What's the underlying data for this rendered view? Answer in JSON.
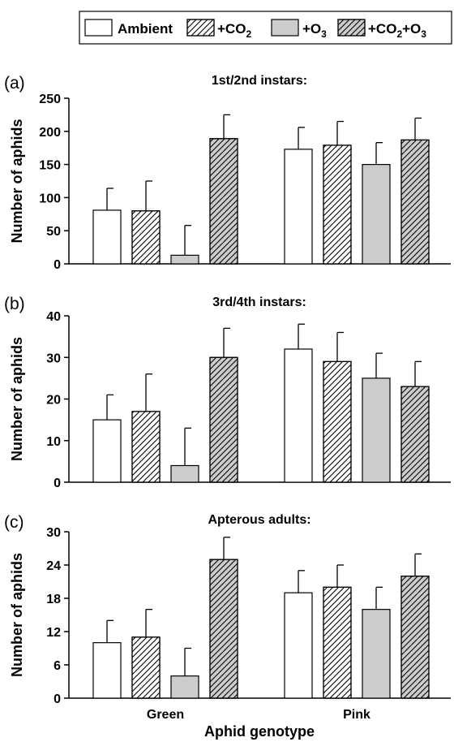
{
  "legend": [
    {
      "key": "ambient",
      "label": "Ambient",
      "sub": "",
      "suffix": ""
    },
    {
      "key": "co2",
      "label": "+CO",
      "sub": "2",
      "suffix": ""
    },
    {
      "key": "o3",
      "label": "+O",
      "sub": "3",
      "suffix": ""
    },
    {
      "key": "co2o3",
      "label": "+CO",
      "sub": "2",
      "suffix": "+O",
      "sub2": "3"
    }
  ],
  "fills": {
    "ambient": {
      "color": "#ffffff",
      "hatch": false
    },
    "co2": {
      "color": "#ffffff",
      "hatch": true
    },
    "o3": {
      "color": "#cccccc",
      "hatch": false
    },
    "co2o3": {
      "color": "#cccccc",
      "hatch": true
    }
  },
  "xlabel": "Aphid genotype",
  "chart_data": [
    {
      "type": "bar",
      "panel": "(a)",
      "title": "1st/2nd instars:",
      "ylabel": "Number of aphids",
      "categories": [
        "Green",
        "Pink"
      ],
      "ylim": [
        0,
        250
      ],
      "yticks": [
        0,
        50,
        100,
        150,
        200,
        250
      ],
      "series": [
        {
          "key": "ambient",
          "values": [
            81,
            173
          ],
          "errors": [
            33,
            33
          ]
        },
        {
          "key": "co2",
          "values": [
            80,
            179
          ],
          "errors": [
            45,
            36
          ]
        },
        {
          "key": "o3",
          "values": [
            13,
            150
          ],
          "errors": [
            45,
            33
          ]
        },
        {
          "key": "co2o3",
          "values": [
            189,
            187
          ],
          "errors": [
            36,
            33
          ]
        }
      ]
    },
    {
      "type": "bar",
      "panel": "(b)",
      "title": "3rd/4th instars:",
      "ylabel": "Number of aphids",
      "categories": [
        "Green",
        "Pink"
      ],
      "ylim": [
        0,
        40
      ],
      "yticks": [
        0,
        10,
        20,
        30,
        40
      ],
      "series": [
        {
          "key": "ambient",
          "values": [
            15,
            32
          ],
          "errors": [
            6,
            6
          ]
        },
        {
          "key": "co2",
          "values": [
            17,
            29
          ],
          "errors": [
            9,
            7
          ]
        },
        {
          "key": "o3",
          "values": [
            4,
            25
          ],
          "errors": [
            9,
            6
          ]
        },
        {
          "key": "co2o3",
          "values": [
            30,
            23
          ],
          "errors": [
            7,
            6
          ]
        }
      ]
    },
    {
      "type": "bar",
      "panel": "(c)",
      "title": "Apterous adults:",
      "ylabel": "Number of aphids",
      "categories": [
        "Green",
        "Pink"
      ],
      "ylim": [
        0,
        30
      ],
      "yticks": [
        0,
        6,
        12,
        18,
        24,
        30
      ],
      "series": [
        {
          "key": "ambient",
          "values": [
            10,
            19
          ],
          "errors": [
            4,
            4
          ]
        },
        {
          "key": "co2",
          "values": [
            11,
            20
          ],
          "errors": [
            5,
            4
          ]
        },
        {
          "key": "o3",
          "values": [
            4,
            16
          ],
          "errors": [
            5,
            4
          ]
        },
        {
          "key": "co2o3",
          "values": [
            25,
            22
          ],
          "errors": [
            4,
            4
          ]
        }
      ]
    }
  ]
}
